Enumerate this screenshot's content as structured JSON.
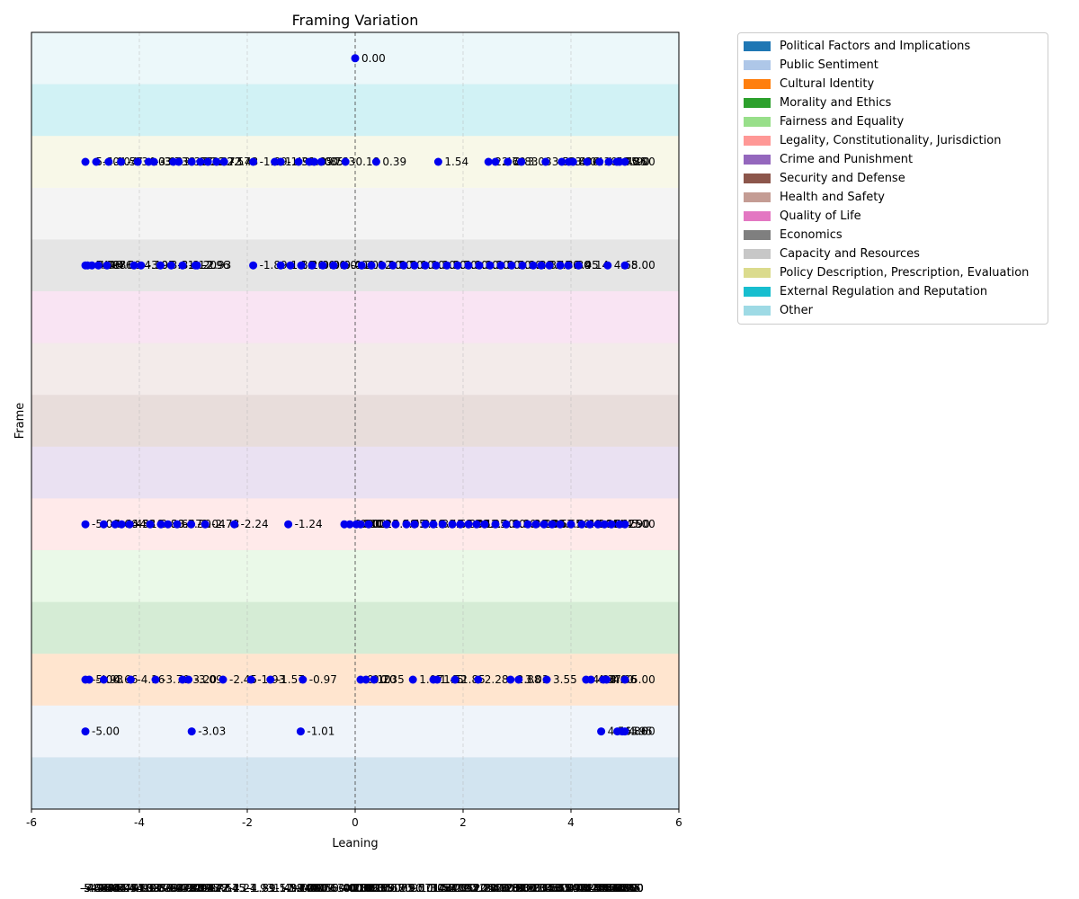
{
  "chart_data": {
    "type": "scatter",
    "title": "Framing Variation",
    "xlabel": "Leaning",
    "ylabel": "Frame",
    "xlim": [
      -6,
      6
    ],
    "xticks": [
      "-6",
      "-4",
      "-2",
      "0",
      "2",
      "4",
      "6"
    ],
    "grid": "vertical dashed",
    "legend_placement": "outside-right",
    "point_color": "#0000ee",
    "bands": [
      {
        "name": "Political Factors and Implications",
        "color": "#1f77b4"
      },
      {
        "name": "Public Sentiment",
        "color": "#aec7e8"
      },
      {
        "name": "Cultural Identity",
        "color": "#ff7f0e"
      },
      {
        "name": "Morality and Ethics",
        "color": "#2ca02c"
      },
      {
        "name": "Fairness and Equality",
        "color": "#98df8a"
      },
      {
        "name": "Legality, Constitutionality, Jurisdiction",
        "color": "#ff9896"
      },
      {
        "name": "Crime and Punishment",
        "color": "#9467bd"
      },
      {
        "name": "Security and Defense",
        "color": "#8c564b"
      },
      {
        "name": "Health and Safety",
        "color": "#c49c94"
      },
      {
        "name": "Quality of Life",
        "color": "#e377c2"
      },
      {
        "name": "Economics",
        "color": "#7f7f7f"
      },
      {
        "name": "Capacity and Resources",
        "color": "#c7c7c7"
      },
      {
        "name": "Policy Description, Prescription, Evaluation",
        "color": "#dbdb8d"
      },
      {
        "name": "External Regulation and Reputation",
        "color": "#17becf"
      },
      {
        "name": "Other",
        "color": "#9edae5"
      }
    ],
    "series": [
      {
        "band": 1,
        "x": [
          -5.0,
          -3.03,
          -1.01,
          4.56,
          4.86,
          4.95,
          5.0
        ],
        "labels": [
          "-5.00",
          "-3.03",
          "-1.01",
          "4.56",
          "4.86",
          "4.95",
          "5.00"
        ]
      },
      {
        "band": 2,
        "x": [
          -5.0,
          -4.93,
          -4.66,
          -4.16,
          -3.7,
          -3.2,
          -3.09,
          -2.45,
          -1.93,
          -1.57,
          -0.97,
          0.1,
          0.2,
          0.35,
          1.07,
          1.45,
          1.52,
          1.85,
          2.28,
          2.88,
          3.03,
          3.55,
          4.28,
          4.37,
          4.6,
          4.66,
          5.0
        ],
        "labels": [
          "-5.00",
          "-4.93",
          "-4.66",
          "-4.16",
          "-3.70",
          "-3.20",
          "-3.09",
          "-2.45",
          "-1.93",
          "-1.57",
          "-0.97",
          "0.10",
          "0.20",
          "0.35",
          "1.07",
          "1.45",
          "1.52",
          "1.85",
          "2.28",
          "2.88",
          "3.03",
          "3.55",
          "4.28",
          "4.37",
          "4.60",
          "4.66",
          "5.00"
        ]
      },
      {
        "band": 5,
        "x": [
          -5.0,
          -4.66,
          -4.45,
          -4.33,
          -4.18,
          -3.8,
          -3.6,
          -3.47,
          -3.3,
          -3.04,
          -2.78,
          -2.24,
          -1.24,
          -0.2,
          -0.1,
          0.02,
          0.1,
          0.25,
          0.58,
          0.75,
          0.95,
          1.1,
          1.3,
          1.45,
          1.62,
          1.8,
          1.95,
          2.1,
          2.25,
          2.4,
          2.6,
          2.8,
          3.0,
          3.2,
          3.35,
          3.5,
          3.65,
          3.8,
          4.0,
          4.2,
          4.35,
          4.5,
          4.62,
          4.75,
          4.9,
          5.0
        ],
        "labels": [
          "-5.00",
          "-4.66",
          "-4.45",
          "-4.33",
          "-4.18",
          "-3.80",
          "-3.60",
          "-3.47",
          "-3.30",
          "-3.04",
          "-2.78",
          "-2.24",
          "-1.24",
          "-0.20",
          "-0.10",
          "0.02",
          "0.10",
          "0.25",
          "0.58",
          "0.75",
          "0.95",
          "1.10",
          "1.30",
          "1.45",
          "1.62",
          "1.80",
          "1.95",
          "2.10",
          "2.25",
          "2.40",
          "2.60",
          "2.80",
          "3.00",
          "3.20",
          "3.35",
          "3.50",
          "3.65",
          "3.80",
          "4.00",
          "4.20",
          "4.35",
          "4.50",
          "4.62",
          "4.75",
          "4.90",
          "5.00"
        ]
      },
      {
        "band": 10,
        "x": [
          -5.0,
          -4.96,
          -4.88,
          -4.76,
          -4.6,
          -4.1,
          -3.97,
          -3.61,
          -3.41,
          -3.2,
          -2.96,
          -2.93,
          -1.89,
          -1.38,
          -1.2,
          -1.0,
          -0.8,
          -0.6,
          -0.4,
          -0.2,
          0.12,
          0.3,
          0.5,
          0.7,
          0.9,
          1.1,
          1.3,
          1.5,
          1.7,
          1.9,
          2.1,
          2.3,
          2.5,
          2.7,
          2.9,
          3.1,
          3.3,
          3.45,
          3.6,
          3.8,
          3.95,
          4.14,
          4.68,
          5.0
        ],
        "labels": [
          "-5.00",
          "-4.96",
          "-4.88",
          "-4.76",
          "-4.60",
          "-4.10",
          "-3.97",
          "-3.61",
          "-3.41",
          "-3.20",
          "-2.96",
          "-2.93",
          "-1.89",
          "-1.38",
          "-1.20",
          "-1.00",
          "-0.80",
          "-0.60",
          "-0.40",
          "-0.20",
          "0.12",
          "0.30",
          "0.50",
          "0.70",
          "0.90",
          "1.10",
          "1.30",
          "1.50",
          "1.70",
          "1.90",
          "2.10",
          "2.30",
          "2.50",
          "2.70",
          "2.90",
          "3.10",
          "3.30",
          "3.45",
          "3.60",
          "3.80",
          "3.95",
          "4.14",
          "4.68",
          "5.00"
        ]
      },
      {
        "band": 12,
        "x": [
          -5.0,
          -4.8,
          -4.57,
          -4.34,
          -4.03,
          -3.83,
          -3.73,
          -3.37,
          -3.27,
          -3.03,
          -2.87,
          -2.73,
          -2.57,
          -2.43,
          -1.89,
          -1.49,
          -1.38,
          -1.05,
          -0.85,
          -0.76,
          -0.63,
          -0.18,
          0.39,
          1.54,
          2.47,
          2.6,
          2.83,
          3.08,
          3.53,
          3.83,
          3.96,
          4.04,
          4.3,
          4.53,
          4.7,
          4.85,
          4.9,
          5.0
        ],
        "labels": [
          "-5.00",
          "-4.80",
          "-4.57",
          "-4.34",
          "-4.03",
          "-3.83",
          "-3.73",
          "-3.37",
          "-3.27",
          "-3.03",
          "-2.87",
          "-2.73",
          "-2.57",
          "-2.43",
          "-1.89",
          "-1.49",
          "-1.38",
          "-1.05",
          "-0.85",
          "-0.76",
          "-0.63",
          "-0.18",
          "0.39",
          "1.54",
          "2.47",
          "2.60",
          "2.83",
          "3.08",
          "3.53",
          "3.83",
          "3.96",
          "4.04",
          "4.30",
          "4.53",
          "4.70",
          "4.85",
          "4.90",
          "5.00"
        ]
      },
      {
        "band": 14,
        "x": [
          0.0
        ],
        "labels": [
          "0.00"
        ]
      }
    ]
  }
}
